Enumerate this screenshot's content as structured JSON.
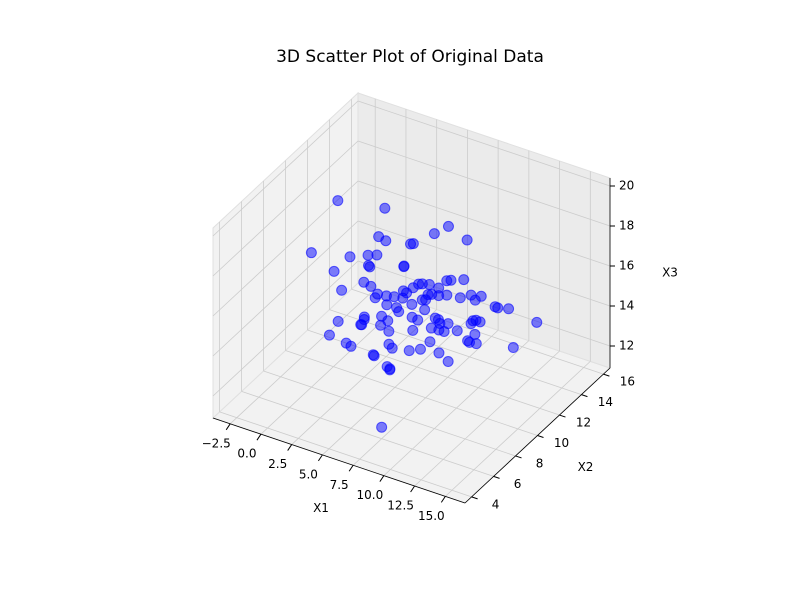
{
  "chart_data": {
    "type": "scatter3d",
    "title": "3D Scatter Plot of Original Data",
    "xlabel": "X1",
    "ylabel": "X2",
    "zlabel": "X3",
    "color": "#0000ff",
    "xlim": [
      -3.9,
      16.6
    ],
    "ylim": [
      3.4,
      16.6
    ],
    "zlim": [
      10.9,
      20.4
    ],
    "xticks": [
      {
        "value": -2.5,
        "label": "−2.5"
      },
      {
        "value": 0,
        "label": "0.0"
      },
      {
        "value": 2.5,
        "label": "2.5"
      },
      {
        "value": 5,
        "label": "5.0"
      },
      {
        "value": 7.5,
        "label": "7.5"
      },
      {
        "value": 10,
        "label": "10.0"
      },
      {
        "value": 12.5,
        "label": "12.5"
      },
      {
        "value": 15,
        "label": "15.0"
      }
    ],
    "yticks": [
      4,
      6,
      8,
      10,
      12,
      14,
      16
    ],
    "zticks": [
      12,
      14,
      16,
      18,
      20
    ],
    "grid": true,
    "x": [
      6.2,
      3.1,
      8.4,
      5.5,
      10.2,
      1.8,
      7.3,
      4.6,
      9.1,
      6.8,
      2.4,
      11.5,
      5.0,
      7.9,
      0.3,
      8.8,
      6.1,
      3.9,
      12.4,
      5.7,
      7.0,
      4.2,
      9.6,
      -1.2,
      6.5,
      8.1,
      2.9,
      10.8,
      5.3,
      7.6,
      4.9,
      13.8,
      6.0,
      1.1,
      8.6,
      5.9,
      9.9,
      3.5,
      7.2,
      6.7,
      0.9,
      11.0,
      4.4,
      8.3,
      5.2,
      14.9,
      6.3,
      2.1,
      9.4,
      7.5,
      3.3,
      10.5,
      5.8,
      6.9,
      -2.6,
      8.0,
      4.7,
      12.0,
      6.6,
      2.6,
      7.8,
      5.1,
      9.2,
      3.7,
      10.0,
      6.4,
      1.5,
      8.9,
      4.1,
      7.1,
      15.2,
      5.4,
      3.0,
      9.7,
      6.2,
      0.0,
      11.8,
      7.4,
      4.8,
      8.5,
      5.6,
      2.2,
      10.3,
      6.9,
      -0.8,
      7.7,
      3.8,
      9.0,
      5.9,
      13.1,
      4.3,
      8.2,
      6.1,
      1.4,
      10.9,
      7.3,
      3.4,
      5.0,
      8.7,
      6.6
    ],
    "y": [
      10.2,
      9.1,
      11.3,
      8.7,
      10.8,
      12.1,
      9.5,
      10.6,
      7.9,
      11.0,
      9.8,
      8.4,
      12.5,
      10.1,
      9.3,
      11.7,
      6.8,
      10.4,
      9.0,
      13.2,
      10.9,
      8.1,
      9.7,
      11.4,
      10.0,
      12.8,
      7.5,
      10.3,
      9.6,
      11.1,
      8.9,
      10.5,
      13.6,
      9.2,
      10.7,
      7.2,
      11.9,
      10.1,
      8.6,
      9.4,
      12.3,
      10.6,
      9.9,
      5.1,
      11.2,
      9.7,
      8.3,
      10.8,
      14.2,
      10.0,
      9.5,
      11.6,
      7.8,
      10.2,
      10.9,
      8.8,
      12.0,
      9.1,
      11.4,
      10.5,
      6.4,
      10.7,
      9.3,
      11.8,
      8.5,
      10.0,
      13.0,
      9.6,
      10.3,
      7.0,
      11.5,
      9.0,
      10.6,
      12.6,
      8.2,
      10.4,
      9.8,
      11.3,
      15.1,
      9.4,
      10.1,
      8.7,
      11.0,
      9.5,
      12.4,
      7.7,
      10.8,
      9.2,
      11.7,
      10.3,
      8.0,
      10.9,
      9.6,
      11.2,
      10.5,
      14.0,
      9.9,
      6.0,
      10.7,
      11.8
    ],
    "z": [
      15.2,
      14.1,
      16.3,
      15.8,
      13.9,
      16.7,
      15.0,
      14.5,
      17.2,
      15.4,
      13.6,
      15.9,
      14.8,
      16.1,
      12.9,
      15.3,
      14.4,
      17.8,
      15.6,
      14.0,
      16.0,
      15.1,
      13.3,
      14.7,
      18.4,
      15.5,
      16.6,
      14.2,
      15.7,
      12.6,
      15.0,
      16.4,
      14.6,
      13.8,
      15.9,
      17.0,
      14.3,
      15.2,
      16.8,
      13.4,
      14.9,
      16.2,
      15.4,
      12.1,
      17.5,
      15.1,
      14.0,
      16.5,
      13.7,
      15.8,
      16.9,
      14.5,
      15.3,
      13.1,
      15.6,
      17.3,
      14.8,
      16.0,
      12.8,
      15.2,
      14.2,
      16.6,
      15.0,
      13.5,
      15.9,
      14.7,
      17.6,
      15.3,
      11.6,
      16.2,
      15.5,
      14.3,
      16.8,
      15.1,
      13.0,
      19.0,
      14.6,
      15.7,
      16.3,
      14.9,
      15.8,
      13.2,
      16.1,
      14.4,
      15.0,
      17.1,
      12.4,
      15.6,
      14.1,
      16.4,
      15.3,
      13.9,
      17.4,
      14.8,
      15.2,
      16.7,
      12.2,
      15.0,
      14.5,
      18.0
    ]
  }
}
